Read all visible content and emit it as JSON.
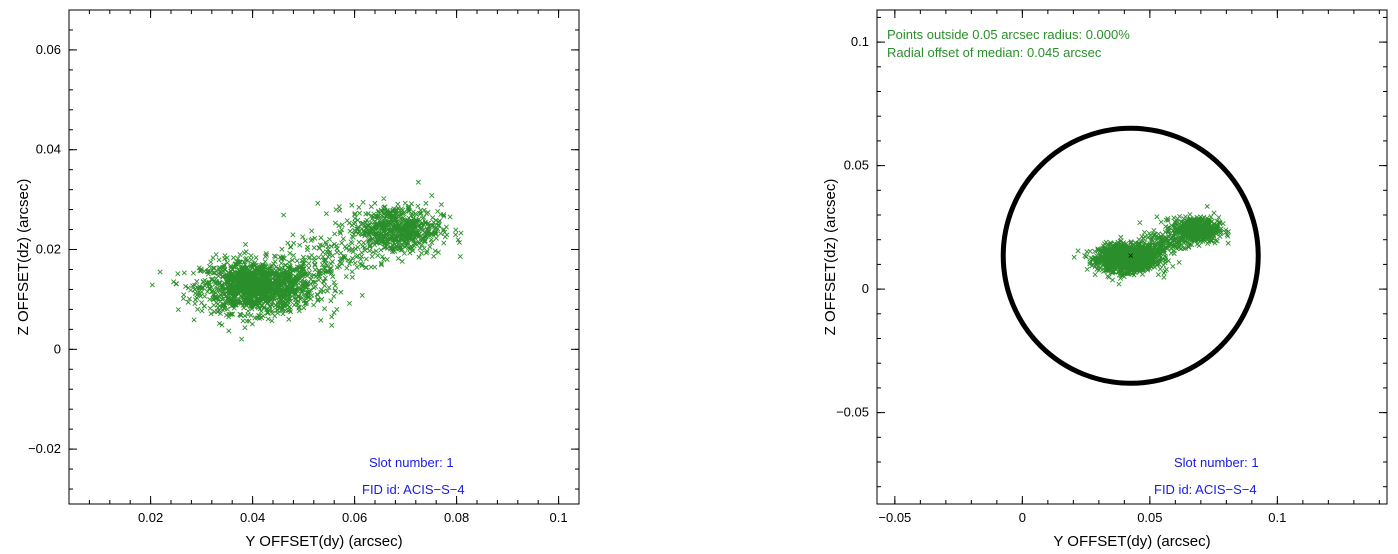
{
  "colors": {
    "points": "#2a8f2a",
    "slot_text": "#1a1ae6",
    "stats_text": "#2a8f2a",
    "circle": "#000000",
    "median": "#000000"
  },
  "chart_data": [
    {
      "type": "scatter",
      "xlabel": "Y OFFSET(dy) (arcsec)",
      "ylabel": "Z OFFSET(dz) (arcsec)",
      "xlim": [
        0.004,
        0.104
      ],
      "ylim": [
        -0.031,
        0.068
      ],
      "xticks": [
        0.02,
        0.04,
        0.06,
        0.08,
        0.1
      ],
      "xtick_labels": [
        "0.02",
        "0.04",
        "0.06",
        "0.08",
        "0.1"
      ],
      "yticks": [
        -0.02,
        0,
        0.02,
        0.04,
        0.06
      ],
      "ytick_labels": [
        "−0.02",
        "0",
        "0.02",
        "0.04",
        "0.06"
      ],
      "annotations": {
        "slot": "Slot number: 1",
        "fid": "FID id: ACIS−S−4"
      },
      "clusters": [
        {
          "cx": 0.041,
          "cy": 0.0125,
          "sx": 0.0055,
          "sy": 0.0026,
          "n": 1400
        },
        {
          "cx": 0.068,
          "cy": 0.024,
          "sx": 0.0045,
          "sy": 0.0025,
          "n": 650
        },
        {
          "cx": 0.054,
          "cy": 0.018,
          "sx": 0.004,
          "sy": 0.0025,
          "n": 120
        }
      ],
      "outliers": [
        [
          0.0555,
          0.0048
        ],
        [
          0.0555,
          0.0065
        ],
        [
          0.0565,
          0.008
        ],
        [
          0.059,
          0.0092
        ],
        [
          0.0615,
          0.0108
        ],
        [
          0.0725,
          0.0335
        ]
      ]
    },
    {
      "type": "scatter",
      "xlabel": "Y OFFSET(dy) (arcsec)",
      "ylabel": "Z OFFSET(dz) (arcsec)",
      "xlim": [
        -0.057,
        0.143
      ],
      "ylim": [
        -0.087,
        0.113
      ],
      "xticks": [
        -0.05,
        0,
        0.05,
        0.1
      ],
      "xtick_labels": [
        "−0.05",
        "0",
        "0.05",
        "0.1"
      ],
      "yticks": [
        -0.05,
        0,
        0.05,
        0.1
      ],
      "ytick_labels": [
        "−0.05",
        "0",
        "0.05",
        "0.1"
      ],
      "annotations": {
        "points_outside": "Points outside 0.05 arcsec radius: 0.000%",
        "radial_offset": "Radial offset of median: 0.045 arcsec",
        "slot": "Slot number: 1",
        "fid": "FID id: ACIS−S−4"
      },
      "circle": {
        "cx": 0.0425,
        "cy": 0.0135,
        "r": 0.05
      },
      "median": [
        0.0425,
        0.0135
      ],
      "clusters": [
        {
          "cx": 0.041,
          "cy": 0.0125,
          "sx": 0.0055,
          "sy": 0.0026,
          "n": 1400
        },
        {
          "cx": 0.068,
          "cy": 0.024,
          "sx": 0.0045,
          "sy": 0.0025,
          "n": 650
        },
        {
          "cx": 0.054,
          "cy": 0.018,
          "sx": 0.004,
          "sy": 0.0025,
          "n": 120
        }
      ],
      "outliers": [
        [
          0.0555,
          0.0048
        ],
        [
          0.0555,
          0.0065
        ],
        [
          0.0565,
          0.008
        ],
        [
          0.059,
          0.0092
        ],
        [
          0.0615,
          0.0108
        ],
        [
          0.0725,
          0.0335
        ]
      ]
    }
  ]
}
